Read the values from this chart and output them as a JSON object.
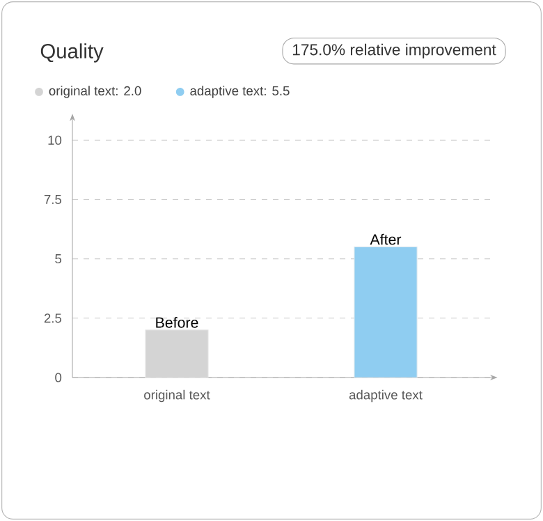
{
  "chart_data": {
    "type": "bar",
    "title": "Quality",
    "categories": [
      "original text",
      "adaptive text"
    ],
    "series": [
      {
        "name": "original text: 2.0",
        "color": "#d4d4d4",
        "values": [
          2.0,
          null
        ]
      },
      {
        "name": "adaptive text: 5.5",
        "color": "#8fcdf1",
        "values": [
          null,
          5.5
        ]
      }
    ],
    "ylim": [
      0,
      10.8
    ],
    "yticks": [
      0,
      2.5,
      5,
      7.5,
      10
    ],
    "grid": "y",
    "legend": "top left",
    "annotations": [
      "175.0% relative improvement",
      {
        "text": "Before",
        "x": "original text",
        "y": 2.0
      },
      {
        "text": "After",
        "x": "adaptive text",
        "y": 5.5
      }
    ]
  }
}
